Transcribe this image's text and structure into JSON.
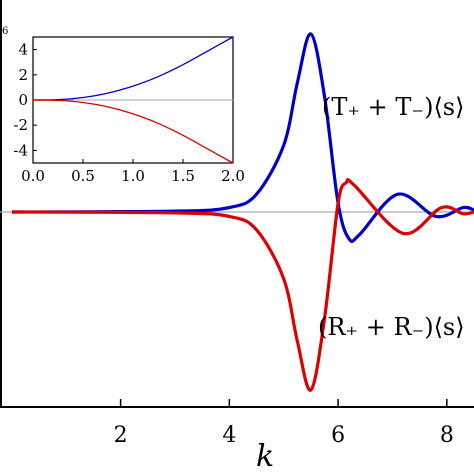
{
  "chart_data": [
    {
      "type": "line",
      "xlabel": "k",
      "xlim": [
        -0.2,
        8.5
      ],
      "xticks": [
        2,
        4,
        6,
        8
      ],
      "grid": false,
      "series": [
        {
          "name": "(T_+ + T_−)⟨s⟩",
          "color": "#0000cc",
          "x": [
            0,
            3,
            4,
            4.5,
            5,
            5.25,
            5.5,
            5.75,
            6,
            6.2,
            6.4,
            7.1,
            7.8,
            8.3,
            8.5
          ],
          "y": [
            0,
            0.01,
            0.05,
            0.2,
            0.75,
            1.45,
            2.0,
            1.3,
            0.1,
            -0.3,
            -0.25,
            0.2,
            -0.05,
            0.05,
            0.02
          ]
        },
        {
          "name": "(R_+ + R_−)⟨s⟩",
          "color": "#dd0000",
          "x": [
            0,
            3,
            4,
            4.5,
            5,
            5.25,
            5.5,
            5.75,
            6,
            6.15,
            6.3,
            7.2,
            7.9,
            8.3,
            8.5
          ],
          "y": [
            0,
            -0.01,
            -0.05,
            -0.2,
            -0.75,
            -1.45,
            -2.0,
            -1.2,
            0.1,
            0.33,
            0.3,
            -0.24,
            0.05,
            -0.02,
            0.0
          ]
        }
      ],
      "labels": {
        "top": "(T₊ + T₋)⟨s⟩",
        "bottom": "(R₊ + R₋)⟨s⟩"
      }
    },
    {
      "type": "line",
      "xlim": [
        0,
        2.0
      ],
      "ylim": [
        -5,
        5
      ],
      "xticks": [
        "0.0",
        "0.5",
        "1.0",
        "1.5",
        "2.0"
      ],
      "yticks": [
        "4",
        "2",
        "0",
        "-2",
        "-4"
      ],
      "corner_text": "6",
      "series": [
        {
          "color": "#0000cc",
          "x": [
            0,
            0.25,
            0.5,
            0.75,
            1.0,
            1.25,
            1.5,
            1.75,
            2.0
          ],
          "y": [
            0,
            0.03,
            0.2,
            0.55,
            1.1,
            1.85,
            2.8,
            3.9,
            5.0
          ]
        },
        {
          "color": "#dd0000",
          "x": [
            0,
            0.25,
            0.5,
            0.75,
            1.0,
            1.25,
            1.5,
            1.75,
            2.0
          ],
          "y": [
            0,
            -0.03,
            -0.2,
            -0.55,
            -1.1,
            -1.85,
            -2.8,
            -3.9,
            -5.0
          ]
        }
      ]
    }
  ]
}
